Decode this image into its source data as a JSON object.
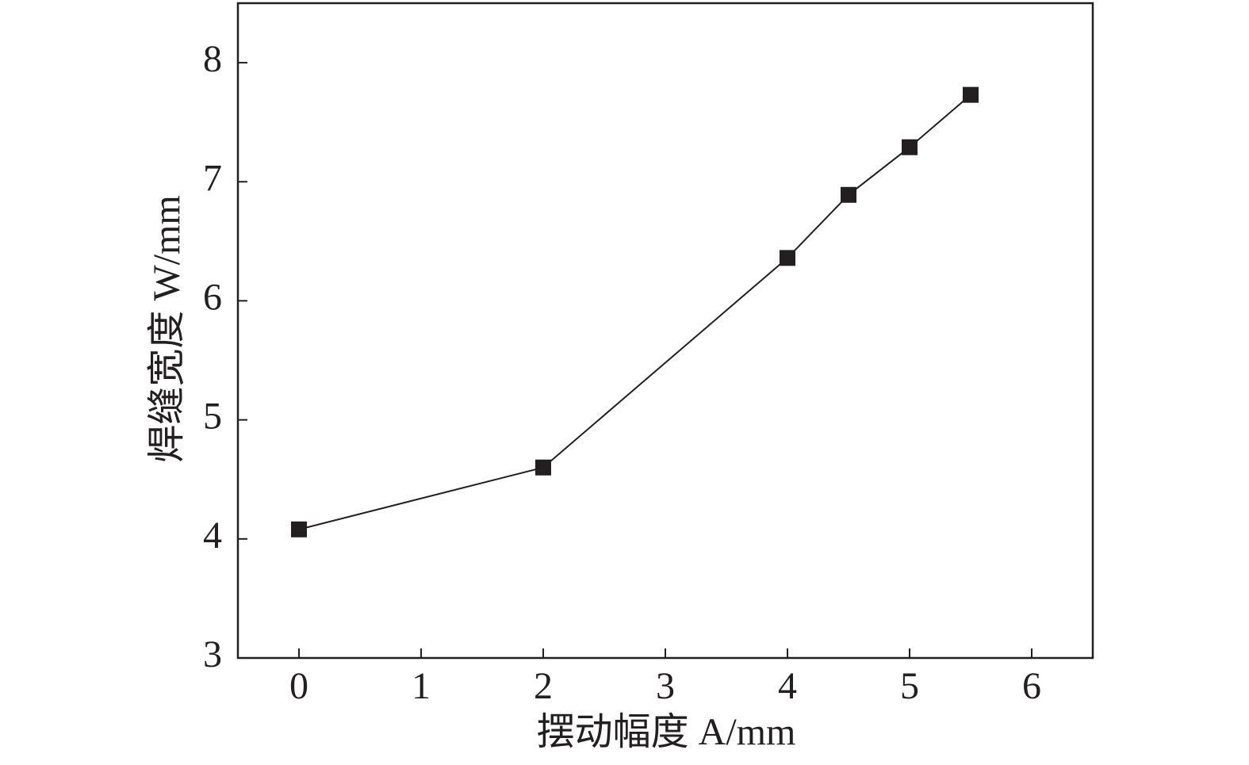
{
  "chart_data": {
    "type": "line",
    "xlabel": "摆动幅度 A/mm",
    "ylabel": "焊缝宽度 W/mm",
    "x": [
      0,
      2,
      4,
      4.5,
      5,
      5.5
    ],
    "series": [
      {
        "color": "#231f20",
        "values": [
          4.08,
          4.6,
          6.36,
          6.89,
          7.29,
          7.73
        ]
      }
    ],
    "xlim": [
      -0.5,
      6.5
    ],
    "ylim": [
      3,
      8.5
    ],
    "xticks": [
      0,
      1,
      2,
      3,
      4,
      5,
      6
    ],
    "yticks": [
      3,
      4,
      5,
      6,
      7,
      8
    ],
    "marker": "square"
  }
}
